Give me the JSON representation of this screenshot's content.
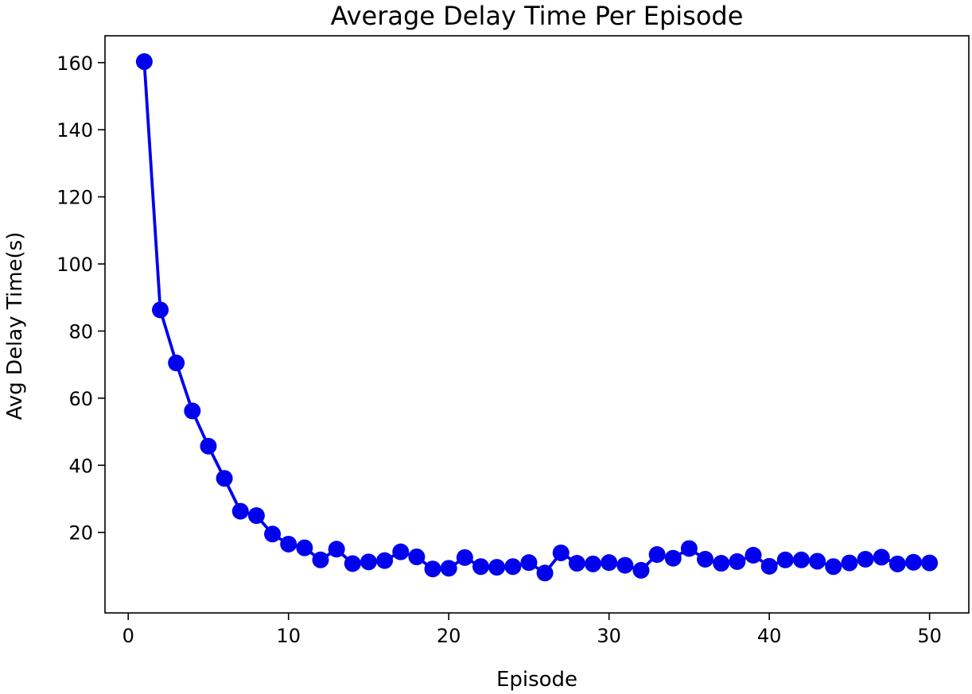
{
  "chart_data": {
    "type": "line",
    "title": "Average Delay Time Per Episode",
    "xlabel": "Episode",
    "ylabel": "Avg Delay Time(s)",
    "xlim": [
      -1.45,
      52.45
    ],
    "ylim": [
      -4,
      168
    ],
    "xticks": [
      0,
      10,
      20,
      30,
      40,
      50
    ],
    "yticks": [
      20,
      40,
      60,
      80,
      100,
      120,
      140,
      160
    ],
    "grid": false,
    "color": "#0000ee",
    "markers": true,
    "x": [
      1,
      2,
      3,
      4,
      5,
      6,
      7,
      8,
      9,
      10,
      11,
      12,
      13,
      14,
      15,
      16,
      17,
      18,
      19,
      20,
      21,
      22,
      23,
      24,
      25,
      26,
      27,
      28,
      29,
      30,
      31,
      32,
      33,
      34,
      35,
      36,
      37,
      38,
      39,
      40,
      41,
      42,
      43,
      44,
      45,
      46,
      47,
      48,
      49,
      50
    ],
    "y": [
      160.3,
      86.3,
      70.5,
      56.2,
      45.7,
      36.1,
      26.3,
      25,
      19.5,
      16.5,
      15.4,
      11.8,
      15,
      10.7,
      11.2,
      11.6,
      14.2,
      12.7,
      9.1,
      9.3,
      12.5,
      9.8,
      9.6,
      9.8,
      11,
      7.9,
      13.9,
      10.8,
      10.6,
      11,
      10.2,
      8.7,
      13.4,
      12.3,
      15.2,
      12,
      10.8,
      11.3,
      13.2,
      9.9,
      11.8,
      11.8,
      11.4,
      9.8,
      10.9,
      12,
      12.6,
      10.6,
      11.1,
      10.9
    ]
  }
}
